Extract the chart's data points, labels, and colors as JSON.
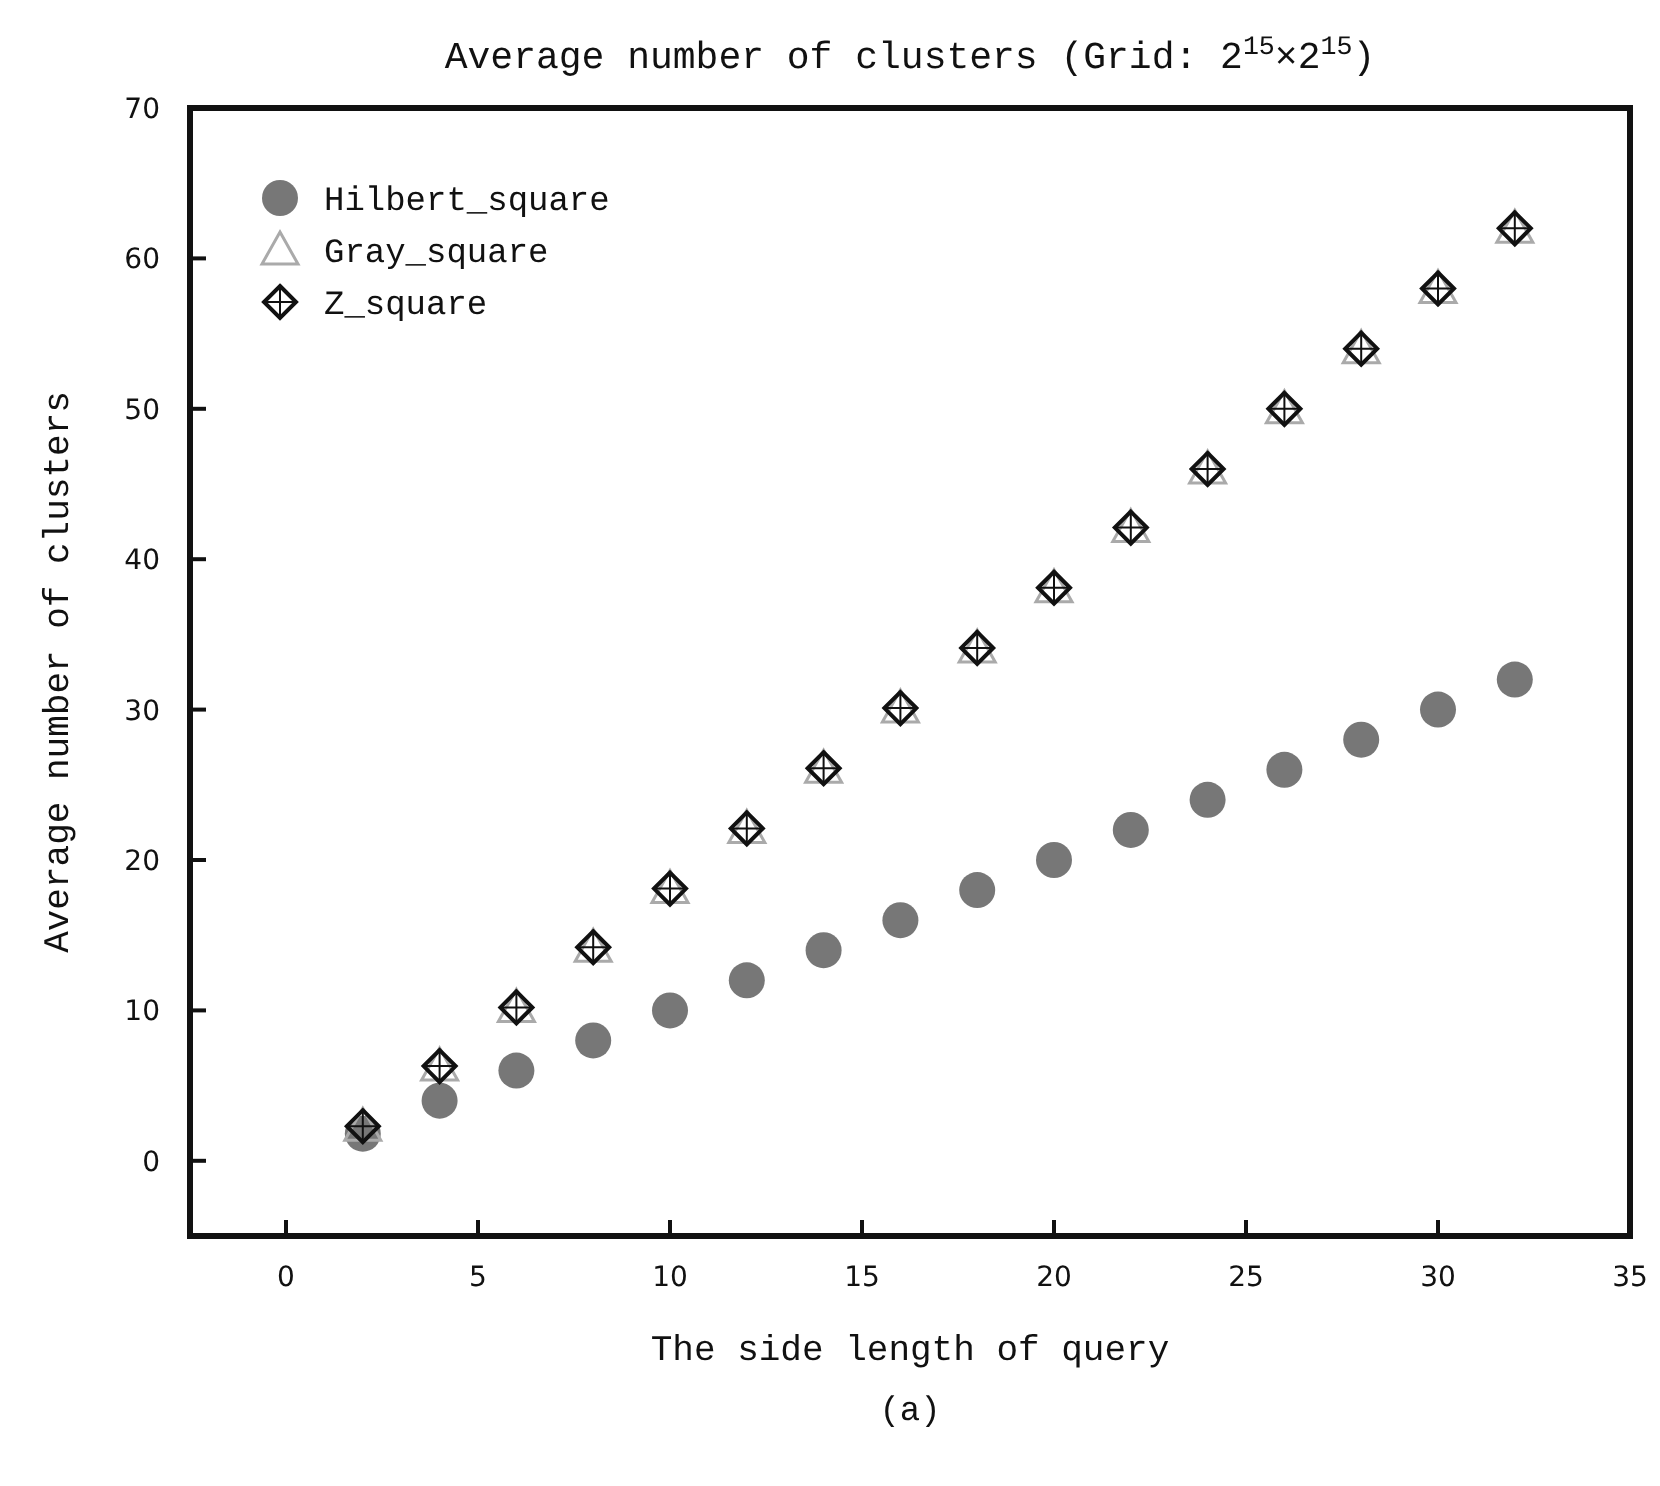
{
  "chart_data": {
    "type": "scatter",
    "title": "Average number of clusters (Grid: 2$^{15}$×2$^{15}$)",
    "xlabel": "The side length of query",
    "ylabel": "Average number of clusters",
    "annotations": [
      "(a)"
    ],
    "x": [
      2,
      4,
      6,
      8,
      10,
      12,
      14,
      16,
      18,
      20,
      22,
      24,
      26,
      28,
      30,
      32
    ],
    "series": [
      {
        "name": "Hilbert_square",
        "color": "#777777",
        "marker": "circle",
        "values": [
          1.8,
          4,
          6,
          8,
          10,
          12,
          14,
          16,
          18,
          20,
          22,
          24,
          26,
          28,
          30,
          32
        ]
      },
      {
        "name": "Gray_square",
        "color": "#aaaaaa",
        "marker": "triangle",
        "values": [
          2.3,
          6.3,
          10.2,
          14.2,
          18.1,
          22.1,
          26.1,
          30.1,
          34.1,
          38.1,
          42.1,
          46,
          50,
          54,
          58,
          62
        ]
      },
      {
        "name": "Z_square",
        "color": "#111111",
        "marker": "diamond",
        "values": [
          2.3,
          6.3,
          10.2,
          14.2,
          18.1,
          22.1,
          26.1,
          30.1,
          34.1,
          38.1,
          42.1,
          46,
          50,
          54,
          58,
          62
        ]
      }
    ],
    "xlim": [
      -2.5,
      35
    ],
    "xticks": [
      0,
      5,
      10,
      15,
      20,
      25,
      30,
      35
    ],
    "ylim": [
      -5,
      70
    ],
    "yticks": [
      0,
      10,
      20,
      30,
      40,
      50,
      60,
      70
    ],
    "grid": false,
    "legend": "top left"
  }
}
